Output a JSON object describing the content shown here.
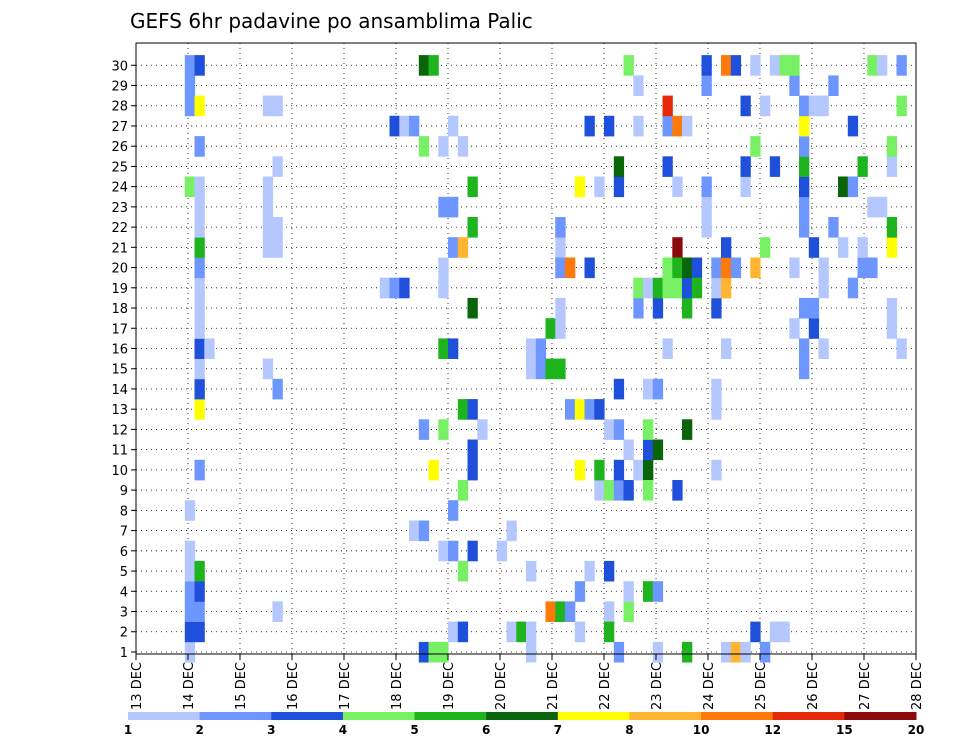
{
  "chart_data": {
    "type": "heatmap",
    "title": "GEFS 6hr padavine po ansamblima Palic",
    "xlabel": "",
    "ylabel": "",
    "x_range": [
      0,
      60
    ],
    "y_range": [
      0,
      30
    ],
    "x_ticks": [
      "13 DEC",
      "14 DEC",
      "15 DEC",
      "16 DEC",
      "17 DEC",
      "18 DEC",
      "19 DEC",
      "20 DEC",
      "21 DEC",
      "22 DEC",
      "23 DEC",
      "24 DEC",
      "25 DEC",
      "26 DEC",
      "27 DEC",
      "28 DEC"
    ],
    "y_ticks": [
      "1",
      "2",
      "3",
      "4",
      "5",
      "6",
      "7",
      "8",
      "9",
      "10",
      "11",
      "12",
      "13",
      "14",
      "15",
      "16",
      "17",
      "18",
      "19",
      "20",
      "21",
      "22",
      "23",
      "24",
      "25",
      "26",
      "27",
      "28",
      "29",
      "30"
    ],
    "grid": true,
    "legend": {
      "placement": "bottom",
      "colors": [
        "#b4c8ff",
        "#6e96ff",
        "#1e50dc",
        "#78f064",
        "#1eb41e",
        "#0a640a",
        "#ffff00",
        "#ffb432",
        "#ff780a",
        "#e6280a",
        "#8c0a0a"
      ],
      "labels": [
        "1",
        "2",
        "3",
        "4",
        "5",
        "6",
        "7",
        "8",
        "10",
        "12",
        "15",
        "20"
      ]
    },
    "cells": [
      [
        5,
        0,
        0
      ],
      [
        5,
        1,
        2
      ],
      [
        5,
        2,
        1
      ],
      [
        5,
        3,
        1
      ],
      [
        5,
        4,
        0
      ],
      [
        5,
        5,
        0
      ],
      [
        5,
        7,
        0
      ],
      [
        5,
        23,
        3
      ],
      [
        5,
        27,
        1
      ],
      [
        5,
        28,
        1
      ],
      [
        5,
        29,
        1
      ],
      [
        6,
        1,
        2
      ],
      [
        6,
        2,
        1
      ],
      [
        6,
        3,
        2
      ],
      [
        6,
        4,
        4
      ],
      [
        6,
        9,
        1
      ],
      [
        6,
        12,
        6
      ],
      [
        6,
        13,
        2
      ],
      [
        6,
        14,
        0
      ],
      [
        6,
        15,
        2
      ],
      [
        6,
        16,
        0
      ],
      [
        6,
        17,
        0
      ],
      [
        6,
        18,
        0
      ],
      [
        6,
        19,
        1
      ],
      [
        6,
        20,
        4
      ],
      [
        6,
        21,
        0
      ],
      [
        6,
        22,
        0
      ],
      [
        6,
        23,
        0
      ],
      [
        6,
        25,
        1
      ],
      [
        6,
        27,
        6
      ],
      [
        6,
        29,
        2
      ],
      [
        7,
        15,
        0
      ],
      [
        13,
        14,
        0
      ],
      [
        13,
        20,
        0
      ],
      [
        13,
        21,
        0
      ],
      [
        13,
        22,
        0
      ],
      [
        13,
        23,
        0
      ],
      [
        13,
        27,
        0
      ],
      [
        14,
        2,
        0
      ],
      [
        14,
        13,
        1
      ],
      [
        14,
        20,
        0
      ],
      [
        14,
        21,
        0
      ],
      [
        14,
        24,
        0
      ],
      [
        14,
        27,
        0
      ],
      [
        25,
        18,
        0
      ],
      [
        26,
        18,
        1
      ],
      [
        26,
        26,
        2
      ],
      [
        27,
        18,
        2
      ],
      [
        27,
        26,
        0
      ],
      [
        28,
        6,
        0
      ],
      [
        28,
        26,
        1
      ],
      [
        29,
        0,
        2
      ],
      [
        29,
        6,
        1
      ],
      [
        29,
        11,
        1
      ],
      [
        29,
        25,
        3
      ],
      [
        29,
        29,
        5
      ],
      [
        30,
        0,
        3
      ],
      [
        30,
        9,
        6
      ],
      [
        30,
        29,
        4
      ],
      [
        31,
        0,
        3
      ],
      [
        31,
        5,
        0
      ],
      [
        31,
        11,
        3
      ],
      [
        31,
        15,
        4
      ],
      [
        31,
        18,
        0
      ],
      [
        31,
        19,
        0
      ],
      [
        31,
        22,
        1
      ],
      [
        31,
        25,
        0
      ],
      [
        32,
        1,
        0
      ],
      [
        32,
        5,
        1
      ],
      [
        32,
        7,
        1
      ],
      [
        32,
        15,
        2
      ],
      [
        32,
        20,
        1
      ],
      [
        32,
        22,
        1
      ],
      [
        32,
        26,
        0
      ],
      [
        33,
        1,
        2
      ],
      [
        33,
        4,
        3
      ],
      [
        33,
        8,
        3
      ],
      [
        33,
        12,
        4
      ],
      [
        33,
        20,
        7
      ],
      [
        33,
        25,
        0
      ],
      [
        34,
        5,
        2
      ],
      [
        34,
        9,
        2
      ],
      [
        34,
        10,
        2
      ],
      [
        34,
        12,
        2
      ],
      [
        34,
        17,
        5
      ],
      [
        34,
        21,
        4
      ],
      [
        34,
        23,
        4
      ],
      [
        35,
        11,
        0
      ],
      [
        37,
        5,
        0
      ],
      [
        38,
        1,
        0
      ],
      [
        38,
        6,
        0
      ],
      [
        39,
        1,
        4
      ],
      [
        40,
        0,
        0
      ],
      [
        40,
        1,
        0
      ],
      [
        40,
        4,
        0
      ],
      [
        40,
        14,
        0
      ],
      [
        40,
        15,
        0
      ],
      [
        41,
        14,
        1
      ],
      [
        41,
        15,
        1
      ],
      [
        42,
        14,
        4
      ],
      [
        42,
        16,
        4
      ],
      [
        42,
        2,
        8
      ],
      [
        43,
        14,
        4
      ],
      [
        43,
        16,
        0
      ],
      [
        43,
        17,
        0
      ],
      [
        43,
        19,
        0
      ],
      [
        43,
        20,
        0
      ],
      [
        43,
        21,
        0
      ],
      [
        43,
        2,
        4
      ],
      [
        43,
        19,
        1
      ],
      [
        43,
        21,
        1
      ],
      [
        44,
        2,
        1
      ],
      [
        44,
        19,
        8
      ],
      [
        44,
        12,
        1
      ],
      [
        45,
        3,
        1
      ],
      [
        45,
        9,
        6
      ],
      [
        45,
        1,
        0
      ],
      [
        45,
        12,
        6
      ],
      [
        45,
        23,
        6
      ],
      [
        46,
        4,
        0
      ],
      [
        46,
        12,
        1
      ],
      [
        46,
        19,
        2
      ],
      [
        46,
        26,
        2
      ],
      [
        47,
        8,
        0
      ],
      [
        47,
        9,
        4
      ],
      [
        47,
        12,
        2
      ],
      [
        47,
        23,
        0
      ],
      [
        48,
        2,
        0
      ],
      [
        48,
        4,
        2
      ],
      [
        48,
        1,
        4
      ],
      [
        48,
        8,
        3
      ],
      [
        48,
        11,
        0
      ],
      [
        48,
        26,
        2
      ],
      [
        49,
        0,
        1
      ],
      [
        49,
        8,
        1
      ],
      [
        49,
        9,
        2
      ],
      [
        49,
        11,
        1
      ],
      [
        49,
        13,
        2
      ],
      [
        49,
        23,
        2
      ],
      [
        49,
        24,
        5
      ],
      [
        50,
        2,
        3
      ],
      [
        50,
        3,
        0
      ],
      [
        50,
        8,
        2
      ],
      [
        50,
        10,
        0
      ],
      [
        50,
        29,
        3
      ],
      [
        51,
        9,
        0
      ],
      [
        51,
        17,
        1
      ],
      [
        51,
        18,
        3
      ],
      [
        51,
        26,
        0
      ],
      [
        51,
        28,
        0
      ],
      [
        52,
        3,
        4
      ],
      [
        52,
        9,
        5
      ],
      [
        52,
        8,
        3
      ],
      [
        52,
        10,
        2
      ],
      [
        52,
        11,
        3
      ],
      [
        52,
        18,
        0
      ],
      [
        52,
        13,
        0
      ],
      [
        53,
        0,
        0
      ],
      [
        53,
        3,
        1
      ],
      [
        53,
        10,
        5
      ],
      [
        53,
        13,
        1
      ],
      [
        53,
        17,
        2
      ],
      [
        53,
        18,
        4
      ],
      [
        54,
        15,
        0
      ],
      [
        54,
        19,
        3
      ],
      [
        54,
        18,
        3
      ],
      [
        54,
        24,
        2
      ],
      [
        54,
        26,
        1
      ],
      [
        54,
        27,
        9
      ],
      [
        55,
        8,
        2
      ],
      [
        55,
        23,
        0
      ],
      [
        55,
        18,
        3
      ],
      [
        55,
        20,
        10
      ],
      [
        55,
        19,
        4
      ],
      [
        55,
        26,
        8
      ],
      [
        56,
        0,
        4
      ],
      [
        56,
        11,
        5
      ],
      [
        56,
        17,
        4
      ],
      [
        56,
        18,
        2
      ],
      [
        56,
        19,
        5
      ],
      [
        56,
        26,
        0
      ],
      [
        57,
        19,
        2
      ],
      [
        57,
        18,
        4
      ],
      [
        58,
        21,
        0
      ],
      [
        58,
        22,
        0
      ],
      [
        58,
        23,
        1
      ],
      [
        58,
        28,
        1
      ],
      [
        58,
        29,
        2
      ],
      [
        59,
        9,
        0
      ],
      [
        59,
        13,
        0
      ],
      [
        59,
        12,
        0
      ],
      [
        59,
        17,
        2
      ],
      [
        59,
        18,
        0
      ],
      [
        59,
        19,
        1
      ],
      [
        60,
        0,
        0
      ],
      [
        60,
        15,
        0
      ],
      [
        60,
        18,
        7
      ],
      [
        60,
        19,
        8
      ],
      [
        60,
        20,
        2
      ],
      [
        60,
        29,
        8
      ],
      [
        61,
        19,
        1
      ],
      [
        61,
        0,
        7
      ],
      [
        61,
        29,
        2
      ],
      [
        62,
        27,
        2
      ],
      [
        62,
        23,
        0
      ],
      [
        62,
        24,
        2
      ],
      [
        62,
        0,
        0
      ],
      [
        63,
        1,
        2
      ],
      [
        63,
        19,
        7
      ],
      [
        63,
        25,
        3
      ],
      [
        63,
        29,
        0
      ],
      [
        64,
        0,
        1
      ],
      [
        64,
        20,
        3
      ],
      [
        64,
        27,
        0
      ],
      [
        65,
        1,
        0
      ],
      [
        65,
        24,
        2
      ],
      [
        65,
        29,
        0
      ],
      [
        66,
        1,
        0
      ],
      [
        66,
        29,
        3
      ],
      [
        67,
        16,
        0
      ],
      [
        67,
        19,
        0
      ],
      [
        67,
        28,
        1
      ],
      [
        67,
        29,
        3
      ],
      [
        68,
        14,
        1
      ],
      [
        68,
        15,
        1
      ],
      [
        68,
        17,
        1
      ],
      [
        68,
        21,
        1
      ],
      [
        68,
        22,
        1
      ],
      [
        68,
        23,
        2
      ],
      [
        68,
        24,
        4
      ],
      [
        68,
        25,
        1
      ],
      [
        68,
        26,
        6
      ],
      [
        68,
        27,
        1
      ],
      [
        69,
        16,
        2
      ],
      [
        69,
        17,
        1
      ],
      [
        69,
        20,
        2
      ],
      [
        69,
        27,
        0
      ],
      [
        70,
        15,
        0
      ],
      [
        70,
        18,
        0
      ],
      [
        70,
        19,
        0
      ],
      [
        70,
        27,
        0
      ],
      [
        71,
        21,
        1
      ],
      [
        71,
        28,
        1
      ],
      [
        72,
        20,
        0
      ],
      [
        72,
        23,
        5
      ],
      [
        73,
        18,
        1
      ],
      [
        73,
        23,
        1
      ],
      [
        73,
        26,
        2
      ],
      [
        74,
        19,
        1
      ],
      [
        74,
        20,
        0
      ],
      [
        74,
        24,
        4
      ],
      [
        75,
        19,
        1
      ],
      [
        75,
        22,
        0
      ],
      [
        75,
        29,
        3
      ],
      [
        76,
        22,
        0
      ],
      [
        76,
        29,
        0
      ],
      [
        77,
        16,
        0
      ],
      [
        77,
        17,
        0
      ],
      [
        77,
        20,
        6
      ],
      [
        77,
        21,
        4
      ],
      [
        77,
        24,
        0
      ],
      [
        77,
        25,
        3
      ],
      [
        78,
        15,
        0
      ],
      [
        78,
        27,
        3
      ],
      [
        78,
        29,
        1
      ]
    ]
  }
}
